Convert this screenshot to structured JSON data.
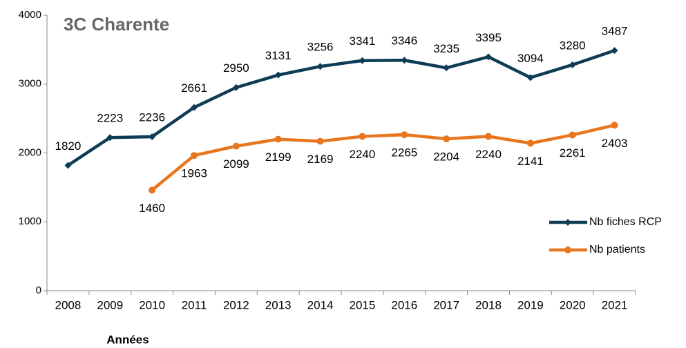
{
  "chart_data": {
    "type": "line",
    "title": "3C Charente",
    "x_label": "Années",
    "categories": [
      "2008",
      "2009",
      "2010",
      "2011",
      "2012",
      "2013",
      "2014",
      "2015",
      "2016",
      "2017",
      "2018",
      "2019",
      "2020",
      "2021"
    ],
    "series": [
      {
        "name": "Nb fiches RCP",
        "color": "#0e3c55",
        "marker": "diamond",
        "values": [
          1820,
          2223,
          2236,
          2661,
          2950,
          3131,
          3256,
          3341,
          3346,
          3235,
          3395,
          3094,
          3280,
          3487
        ]
      },
      {
        "name": "Nb patients",
        "color": "#e8761f",
        "marker": "circle",
        "values": [
          null,
          null,
          1460,
          1963,
          2099,
          2199,
          2169,
          2240,
          2265,
          2204,
          2240,
          2141,
          2261,
          2403
        ]
      }
    ],
    "ylim": [
      0,
      4000
    ],
    "yticks": [
      0,
      1000,
      2000,
      3000,
      4000
    ],
    "grid": false,
    "legend": "right"
  }
}
